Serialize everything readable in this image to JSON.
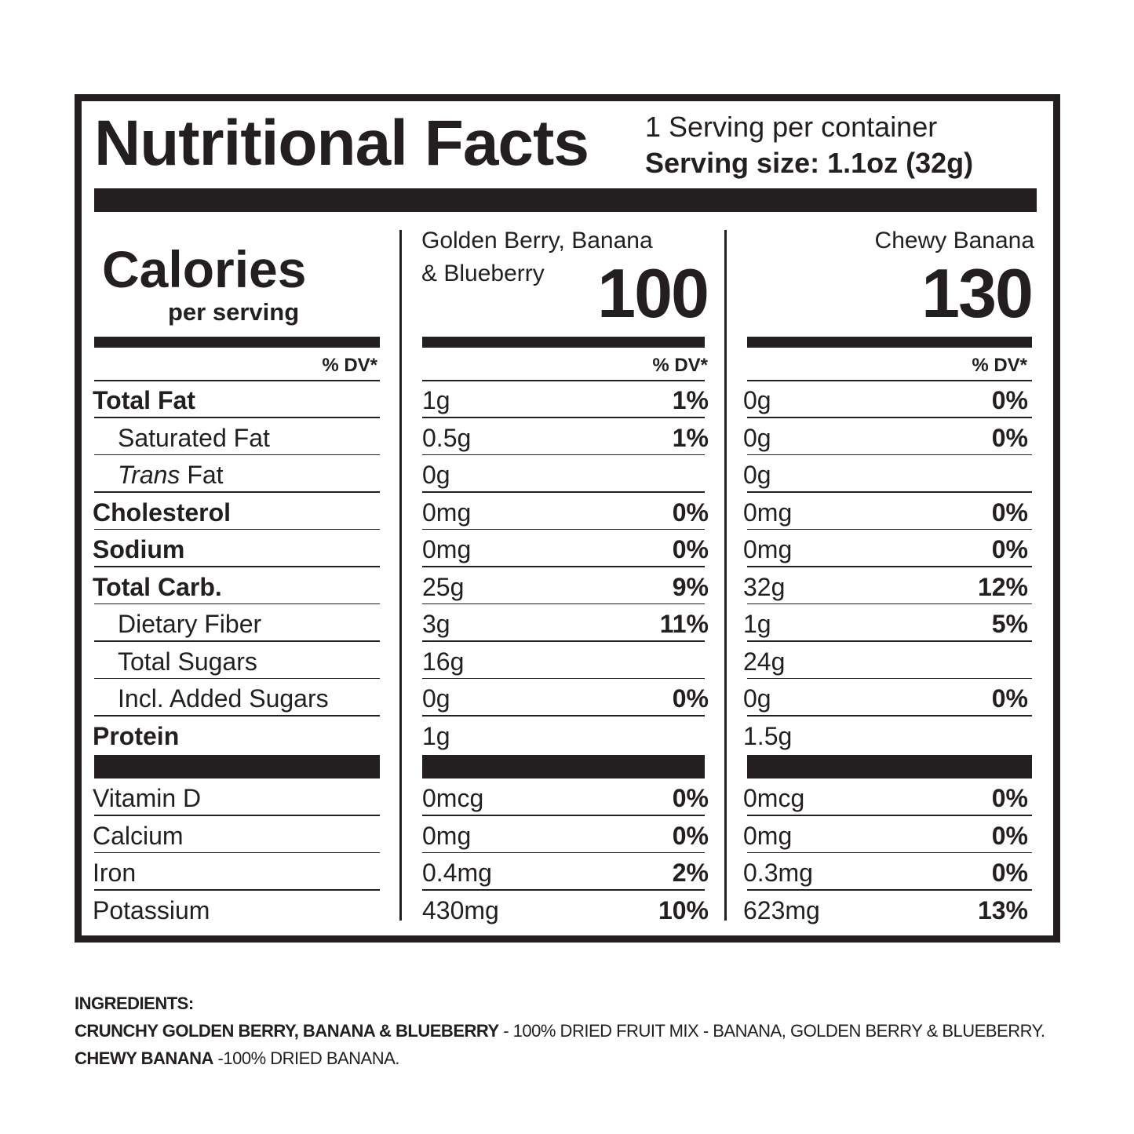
{
  "header": {
    "title": "Nutritional Facts",
    "servings": "1 Serving per container",
    "serving_size": "Serving size: 1.1oz (32g)"
  },
  "calories": {
    "label": "Calories",
    "sublabel": "per serving"
  },
  "dv_header": "% DV*",
  "products": [
    {
      "name_line1": "Golden Berry, Banana",
      "name_line2": "& Blueberry",
      "calories": "100"
    },
    {
      "name_line1": "Chewy Banana",
      "calories": "130"
    }
  ],
  "nutrients": [
    {
      "label": "Total Fat",
      "p1_amount": "1g",
      "p1_dv": "1%",
      "p2_amount": "0g",
      "p2_dv": "0%"
    },
    {
      "label": "Saturated Fat",
      "p1_amount": "0.5g",
      "p1_dv": "1%",
      "p2_amount": "0g",
      "p2_dv": "0%"
    },
    {
      "label_italic": "Trans",
      "label_rest": " Fat",
      "p1_amount": "0g",
      "p1_dv": "",
      "p2_amount": "0g",
      "p2_dv": ""
    },
    {
      "label": "Cholesterol",
      "p1_amount": "0mg",
      "p1_dv": "0%",
      "p2_amount": "0mg",
      "p2_dv": "0%"
    },
    {
      "label": "Sodium",
      "p1_amount": "0mg",
      "p1_dv": "0%",
      "p2_amount": "0mg",
      "p2_dv": "0%"
    },
    {
      "label": "Total Carb.",
      "p1_amount": "25g",
      "p1_dv": "9%",
      "p2_amount": "32g",
      "p2_dv": "12%"
    },
    {
      "label": "Dietary Fiber",
      "p1_amount": "3g",
      "p1_dv": "11%",
      "p2_amount": "1g",
      "p2_dv": "5%"
    },
    {
      "label": "Total Sugars",
      "p1_amount": "16g",
      "p1_dv": "",
      "p2_amount": "24g",
      "p2_dv": ""
    },
    {
      "label": "Incl. Added Sugars",
      "p1_amount": "0g",
      "p1_dv": "0%",
      "p2_amount": "0g",
      "p2_dv": "0%"
    },
    {
      "label": "Protein",
      "p1_amount": "1g",
      "p1_dv": "",
      "p2_amount": "1.5g",
      "p2_dv": ""
    }
  ],
  "vitamins": [
    {
      "label": "Vitamin D",
      "p1_amount": "0mcg",
      "p1_dv": "0%",
      "p2_amount": "0mcg",
      "p2_dv": "0%"
    },
    {
      "label": "Calcium",
      "p1_amount": "0mg",
      "p1_dv": "0%",
      "p2_amount": "0mg",
      "p2_dv": "0%"
    },
    {
      "label": "Iron",
      "p1_amount": "0.4mg",
      "p1_dv": "2%",
      "p2_amount": "0.3mg",
      "p2_dv": "0%"
    },
    {
      "label": "Potassium",
      "p1_amount": "430mg",
      "p1_dv": "10%",
      "p2_amount": "623mg",
      "p2_dv": "13%"
    }
  ],
  "ingredients": {
    "heading": "INGREDIENTS:",
    "line1_bold": "CRUNCHY GOLDEN BERRY, BANANA & BLUEBERRY",
    "line1_rest": " - 100% DRIED FRUIT MIX - BANANA, GOLDEN BERRY & BLUEBERRY.",
    "line2_bold": "CHEWY BANANA",
    "line2_rest": " -100% DRIED BANANA."
  }
}
